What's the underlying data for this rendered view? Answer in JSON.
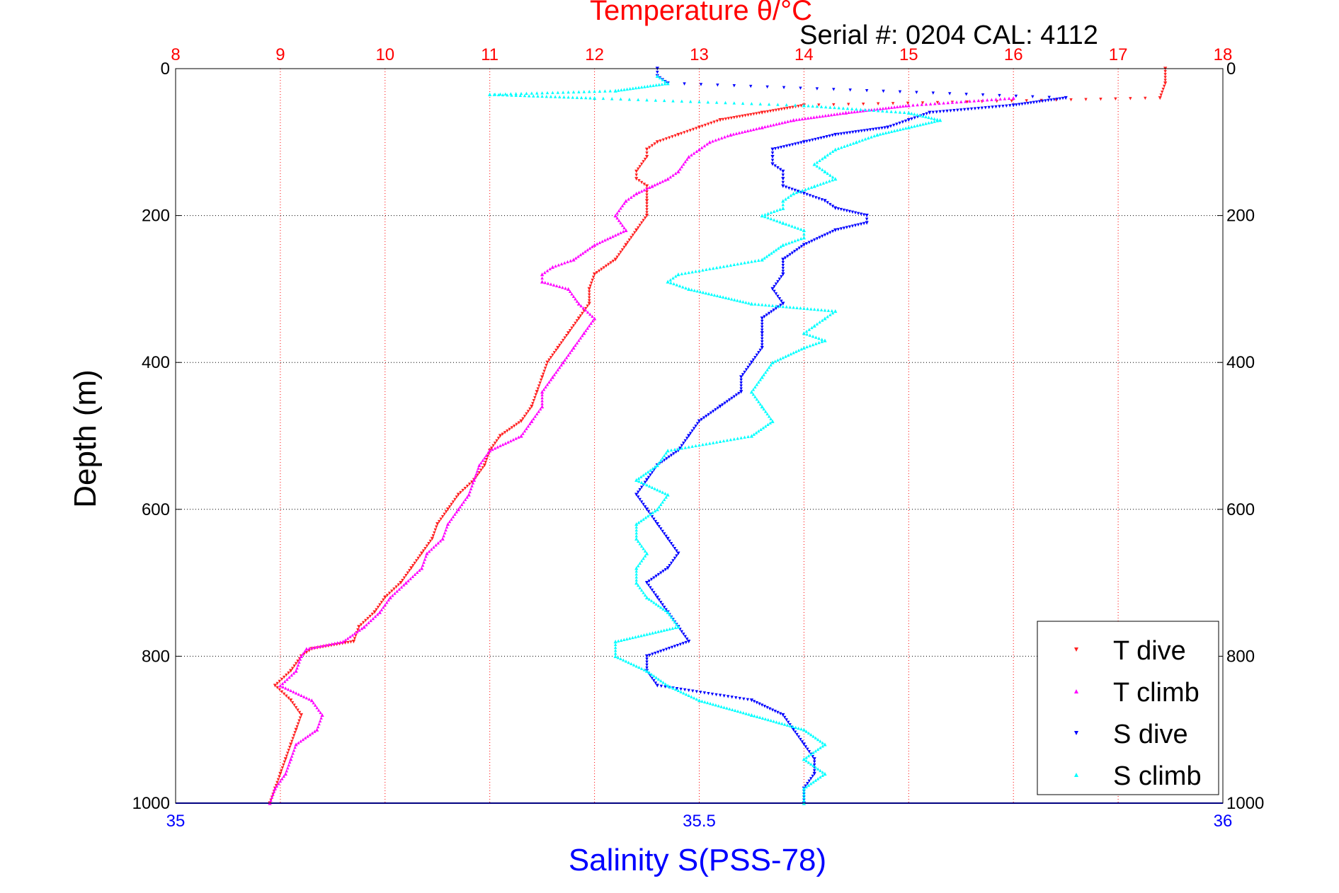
{
  "title_top": "Temperature θ/°C",
  "serial": "Serial #: 0204  CAL: 4112",
  "chart_data": {
    "type": "scatter",
    "ylabel": "Depth (m)",
    "xlabel_bottom": "Salinity S(PSS-78)",
    "xlabel_top": "Temperature θ/°C",
    "y_axis": {
      "range": [
        0,
        1000
      ],
      "reversed": true,
      "ticks": [
        0,
        200,
        400,
        600,
        800,
        1000
      ]
    },
    "x_top": {
      "range": [
        8,
        18
      ],
      "ticks": [
        8,
        9,
        10,
        11,
        12,
        13,
        14,
        15,
        16,
        17,
        18
      ]
    },
    "x_bottom": {
      "range": [
        35,
        36
      ],
      "ticks": [
        35,
        35.5,
        36
      ],
      "tick_labels": [
        "35",
        "35.5",
        "36"
      ]
    },
    "grid": true,
    "legend_position": "bottom-right",
    "colors": {
      "temperature_axis": "#ff0000",
      "salinity_axis": "#0000ff",
      "T_dive": "#ff2020",
      "T_climb": "#ff00ff",
      "S_dive": "#0000ff",
      "S_climb": "#00ffff"
    },
    "series": [
      {
        "name": "T dive",
        "axis": "temperature",
        "color": "#ff2020",
        "marker": "triangle-down",
        "depth": [
          0,
          20,
          40,
          50,
          60,
          70,
          80,
          90,
          100,
          110,
          120,
          140,
          150,
          160,
          180,
          200,
          220,
          240,
          260,
          280,
          300,
          320,
          340,
          360,
          380,
          400,
          420,
          440,
          460,
          480,
          500,
          520,
          540,
          560,
          580,
          600,
          620,
          640,
          660,
          680,
          700,
          720,
          740,
          760,
          780,
          790,
          800,
          820,
          840,
          860,
          880,
          900,
          920,
          940,
          960,
          980,
          1000
        ],
        "value": [
          17.45,
          17.45,
          17.4,
          14.0,
          13.6,
          13.2,
          13.0,
          12.8,
          12.6,
          12.5,
          12.5,
          12.4,
          12.4,
          12.5,
          12.5,
          12.5,
          12.4,
          12.3,
          12.2,
          12.0,
          11.95,
          11.95,
          11.85,
          11.75,
          11.65,
          11.55,
          11.5,
          11.45,
          11.4,
          11.3,
          11.1,
          11.0,
          10.95,
          10.85,
          10.7,
          10.6,
          10.5,
          10.45,
          10.35,
          10.25,
          10.15,
          10.0,
          9.9,
          9.75,
          9.7,
          9.3,
          9.2,
          9.1,
          8.95,
          9.1,
          9.2,
          9.15,
          9.1,
          9.05,
          9.0,
          8.95,
          8.9
        ]
      },
      {
        "name": "T climb",
        "axis": "temperature",
        "color": "#ff00ff",
        "marker": "triangle-up",
        "depth": [
          40,
          50,
          60,
          70,
          80,
          90,
          100,
          110,
          120,
          140,
          150,
          160,
          170,
          180,
          200,
          220,
          240,
          260,
          270,
          280,
          290,
          300,
          320,
          340,
          360,
          380,
          400,
          420,
          440,
          460,
          480,
          500,
          520,
          540,
          560,
          580,
          600,
          620,
          640,
          660,
          680,
          700,
          720,
          740,
          760,
          780,
          790,
          800,
          820,
          840,
          860,
          880,
          900,
          920,
          940,
          960,
          980,
          1000
        ],
        "value": [
          16.0,
          15.0,
          14.4,
          13.9,
          13.6,
          13.3,
          13.1,
          13.0,
          12.9,
          12.8,
          12.7,
          12.55,
          12.4,
          12.3,
          12.2,
          12.3,
          12.0,
          11.8,
          11.6,
          11.5,
          11.5,
          11.75,
          11.85,
          12.0,
          11.9,
          11.8,
          11.7,
          11.6,
          11.5,
          11.5,
          11.4,
          11.3,
          11.0,
          10.9,
          10.85,
          10.8,
          10.7,
          10.6,
          10.55,
          10.4,
          10.35,
          10.2,
          10.05,
          9.95,
          9.8,
          9.6,
          9.25,
          9.2,
          9.15,
          9.0,
          9.3,
          9.4,
          9.35,
          9.15,
          9.1,
          9.05,
          8.95,
          8.9
        ]
      },
      {
        "name": "S dive",
        "axis": "salinity",
        "color": "#0000ff",
        "marker": "triangle-down",
        "depth": [
          0,
          10,
          20,
          40,
          50,
          60,
          70,
          80,
          90,
          100,
          110,
          120,
          130,
          140,
          150,
          160,
          170,
          180,
          190,
          200,
          210,
          220,
          240,
          260,
          280,
          300,
          320,
          340,
          360,
          380,
          400,
          420,
          440,
          460,
          480,
          500,
          520,
          540,
          560,
          580,
          600,
          620,
          640,
          660,
          680,
          700,
          720,
          740,
          760,
          780,
          800,
          820,
          840,
          860,
          880,
          900,
          920,
          940,
          960,
          980,
          1000
        ],
        "value": [
          35.46,
          35.46,
          35.47,
          35.85,
          35.8,
          35.72,
          35.7,
          35.68,
          35.63,
          35.6,
          35.57,
          35.57,
          35.57,
          35.58,
          35.58,
          35.58,
          35.6,
          35.62,
          35.63,
          35.66,
          35.66,
          35.63,
          35.6,
          35.58,
          35.58,
          35.57,
          35.58,
          35.56,
          35.56,
          35.56,
          35.55,
          35.54,
          35.54,
          35.52,
          35.5,
          35.49,
          35.48,
          35.46,
          35.45,
          35.44,
          35.45,
          35.46,
          35.47,
          35.48,
          35.47,
          35.45,
          35.46,
          35.47,
          35.48,
          35.49,
          35.45,
          35.45,
          35.46,
          35.55,
          35.58,
          35.59,
          35.6,
          35.61,
          35.61,
          35.6,
          35.6
        ]
      },
      {
        "name": "S climb",
        "axis": "salinity",
        "color": "#00ffff",
        "marker": "triangle-up",
        "depth": [
          10,
          20,
          30,
          35,
          40,
          50,
          60,
          70,
          80,
          90,
          100,
          110,
          120,
          130,
          140,
          150,
          160,
          170,
          180,
          190,
          200,
          210,
          220,
          230,
          240,
          260,
          280,
          290,
          300,
          320,
          330,
          340,
          350,
          360,
          370,
          380,
          400,
          420,
          440,
          460,
          480,
          500,
          520,
          540,
          560,
          580,
          600,
          620,
          640,
          660,
          680,
          700,
          720,
          740,
          760,
          780,
          800,
          820,
          840,
          860,
          880,
          900,
          920,
          940,
          960,
          980,
          1000
        ],
        "value": [
          35.46,
          35.47,
          35.42,
          35.3,
          35.4,
          35.6,
          35.7,
          35.73,
          35.7,
          35.67,
          35.65,
          35.63,
          35.62,
          35.61,
          35.62,
          35.63,
          35.61,
          35.59,
          35.58,
          35.58,
          35.56,
          35.58,
          35.6,
          35.6,
          35.58,
          35.56,
          35.48,
          35.47,
          35.49,
          35.55,
          35.63,
          35.62,
          35.61,
          35.6,
          35.62,
          35.6,
          35.57,
          35.56,
          35.55,
          35.56,
          35.57,
          35.55,
          35.47,
          35.46,
          35.44,
          35.47,
          35.46,
          35.44,
          35.44,
          35.45,
          35.44,
          35.44,
          35.45,
          35.47,
          35.48,
          35.42,
          35.42,
          35.45,
          35.47,
          35.5,
          35.55,
          35.6,
          35.62,
          35.6,
          35.62,
          35.6,
          35.6
        ]
      }
    ]
  }
}
